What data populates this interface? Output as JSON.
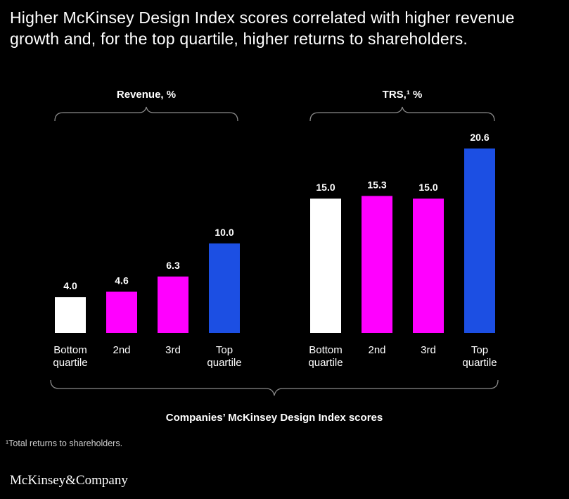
{
  "title": "Higher McKinsey Design Index scores correlated with higher revenue growth and, for the top quartile, higher returns to shareholders.",
  "x_axis_title": "Companies’ McKinsey Design Index scores",
  "footnote": "¹Total returns to shareholders.",
  "logo_text": "McKinsey&Company",
  "colors": {
    "bottom": "#ffffff",
    "mid": "#ff00ff",
    "top": "#1c4fe3",
    "background": "#000000"
  },
  "chart_data": [
    {
      "type": "bar",
      "title": "Revenue, %",
      "categories": [
        [
          "Bottom",
          "quartile"
        ],
        [
          "2nd"
        ],
        [
          "3rd"
        ],
        [
          "Top",
          "quartile"
        ]
      ],
      "values": [
        4.0,
        4.6,
        6.3,
        10.0
      ],
      "value_labels": [
        "4.0",
        "4.6",
        "6.3",
        "10.0"
      ],
      "bar_colors": [
        "#ffffff",
        "#ff00ff",
        "#ff00ff",
        "#1c4fe3"
      ],
      "ylim": [
        0,
        20.6
      ]
    },
    {
      "type": "bar",
      "title": "TRS,¹ %",
      "categories": [
        [
          "Bottom",
          "quartile"
        ],
        [
          "2nd"
        ],
        [
          "3rd"
        ],
        [
          "Top",
          "quartile"
        ]
      ],
      "values": [
        15.0,
        15.3,
        15.0,
        20.6
      ],
      "value_labels": [
        "15.0",
        "15.3",
        "15.0",
        "20.6"
      ],
      "bar_colors": [
        "#ffffff",
        "#ff00ff",
        "#ff00ff",
        "#1c4fe3"
      ],
      "ylim": [
        0,
        20.6
      ]
    }
  ]
}
